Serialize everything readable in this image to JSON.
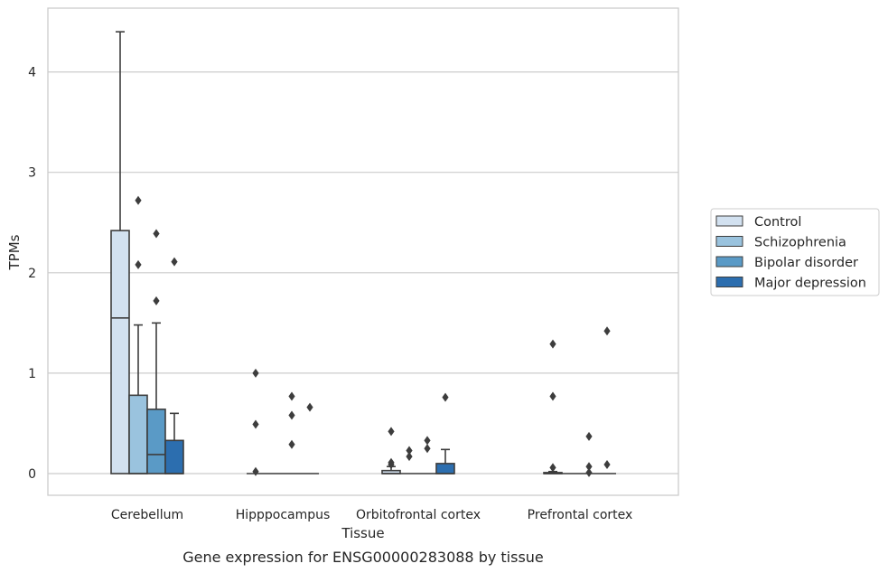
{
  "chart_data": {
    "type": "box",
    "title": "",
    "caption": "Gene expression for ENSG00000283088 by tissue",
    "xlabel": "Tissue",
    "ylabel": "TPMs",
    "ylim": [
      -0.21,
      4.64
    ],
    "yticks": [
      0,
      1,
      2,
      3,
      4
    ],
    "grid": true,
    "legend_position": "right",
    "categories": [
      "Cerebellum",
      "Hipppocampus",
      "Orbitofrontal cortex",
      "Prefrontal cortex"
    ],
    "series": [
      {
        "name": "Control",
        "color": "#d2e1f0",
        "boxes": [
          {
            "whislo": 0,
            "q1": 0,
            "med": 1.55,
            "q3": 2.42,
            "whishi": 4.4,
            "fliers": []
          },
          {
            "whislo": 0,
            "q1": 0,
            "med": 0,
            "q3": 0,
            "whishi": 0,
            "fliers": [
              1.0,
              0.49,
              0.02
            ]
          },
          {
            "whislo": 0,
            "q1": 0,
            "med": 0,
            "q3": 0.03,
            "whishi": 0.07,
            "fliers": [
              0.42,
              0.11,
              0.09
            ]
          },
          {
            "whislo": 0,
            "q1": 0,
            "med": 0,
            "q3": 0.01,
            "whishi": 0.02,
            "fliers": [
              1.29,
              0.77,
              0.06
            ]
          }
        ]
      },
      {
        "name": "Schizophrenia",
        "color": "#9ac3de",
        "boxes": [
          {
            "whislo": 0,
            "q1": 0,
            "med": 0,
            "q3": 0.78,
            "whishi": 1.48,
            "fliers": [
              2.72,
              2.08
            ]
          },
          {
            "whislo": 0,
            "q1": 0,
            "med": 0,
            "q3": 0,
            "whishi": 0,
            "fliers": []
          },
          {
            "whislo": 0,
            "q1": 0,
            "med": 0,
            "q3": 0,
            "whishi": 0,
            "fliers": [
              0.23,
              0.17
            ]
          },
          {
            "whislo": 0,
            "q1": 0,
            "med": 0,
            "q3": 0,
            "whishi": 0,
            "fliers": []
          }
        ]
      },
      {
        "name": "Bipolar disorder",
        "color": "#5a9ac6",
        "boxes": [
          {
            "whislo": 0,
            "q1": 0,
            "med": 0.19,
            "q3": 0.64,
            "whishi": 1.5,
            "fliers": [
              2.39,
              1.72
            ]
          },
          {
            "whislo": 0,
            "q1": 0,
            "med": 0,
            "q3": 0,
            "whishi": 0,
            "fliers": [
              0.77,
              0.58,
              0.29
            ]
          },
          {
            "whislo": 0,
            "q1": 0,
            "med": 0,
            "q3": 0,
            "whishi": 0,
            "fliers": [
              0.33,
              0.25
            ]
          },
          {
            "whislo": 0,
            "q1": 0,
            "med": 0,
            "q3": 0,
            "whishi": 0,
            "fliers": [
              0.37,
              0.07,
              0.01
            ]
          }
        ]
      },
      {
        "name": "Major depression",
        "color": "#2c6eaf",
        "boxes": [
          {
            "whislo": 0,
            "q1": 0,
            "med": 0,
            "q3": 0.33,
            "whishi": 0.6,
            "fliers": [
              2.11
            ]
          },
          {
            "whislo": 0,
            "q1": 0,
            "med": 0,
            "q3": 0,
            "whishi": 0,
            "fliers": [
              0.66
            ]
          },
          {
            "whislo": 0,
            "q1": 0,
            "med": 0,
            "q3": 0.1,
            "whishi": 0.24,
            "fliers": [
              0.76
            ]
          },
          {
            "whislo": 0,
            "q1": 0,
            "med": 0,
            "q3": 0,
            "whishi": 0,
            "fliers": [
              1.42,
              0.09
            ]
          }
        ]
      }
    ]
  },
  "colors": {
    "grid": "#cccccc",
    "frame": "#cccccc",
    "lines": "#3d3d3d"
  }
}
